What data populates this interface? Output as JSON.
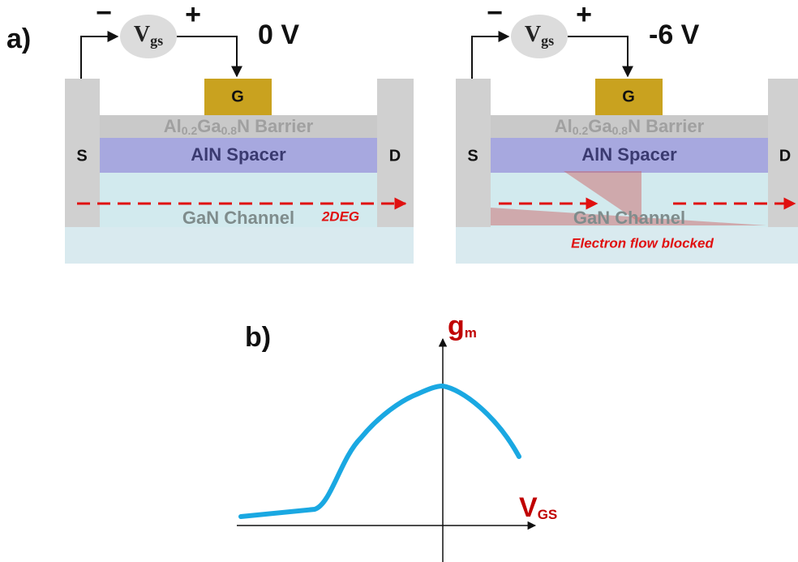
{
  "panel_a": {
    "label": "a)",
    "devices": [
      {
        "minus": "−",
        "plus": "+",
        "vgs": {
          "main": "V",
          "sub": "gs"
        },
        "bias": "0 V",
        "gate": "G",
        "source": "S",
        "drain": "D",
        "barrier": [
          "Al",
          "0.2",
          "Ga",
          "0.8",
          "N Barrier"
        ],
        "spacer": "AlN Spacer",
        "channel": "GaN Channel",
        "note": "2DEG"
      },
      {
        "minus": "−",
        "plus": "+",
        "vgs": {
          "main": "V",
          "sub": "gs"
        },
        "bias": "-6 V",
        "gate": "G",
        "source": "S",
        "drain": "D",
        "barrier": [
          "Al",
          "0.2",
          "Ga",
          "0.8",
          "N Barrier"
        ],
        "spacer": "AlN Spacer",
        "channel": "GaN Channel",
        "note": "Electron flow blocked"
      }
    ]
  },
  "panel_b": {
    "label": "b)",
    "y_axis": {
      "main": "g",
      "sub": "m"
    },
    "x_axis": {
      "main": "V",
      "sub": "GS"
    }
  }
}
